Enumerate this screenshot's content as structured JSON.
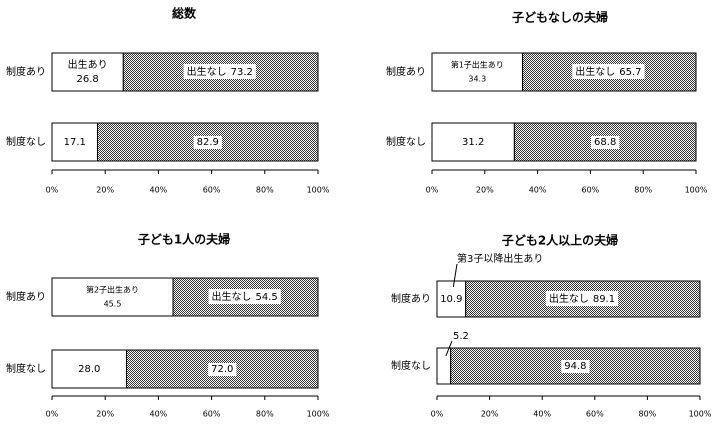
{
  "chart_data": [
    {
      "type": "stacked-bar-h",
      "title": "総数",
      "categories": [
        "制度あり",
        "制度なし"
      ],
      "series": [
        {
          "name": "出生あり",
          "color": "#ffffff",
          "values": [
            26.8,
            17.1
          ]
        },
        {
          "name": "出生なし",
          "color": "#333333",
          "values": [
            73.2,
            82.9
          ]
        }
      ],
      "xlim": [
        0,
        100
      ],
      "xticks": [
        {
          "value": 0,
          "label": "0%"
        },
        {
          "value": 20,
          "label": "20%"
        },
        {
          "value": 40,
          "label": "40%"
        },
        {
          "value": 60,
          "label": "60%"
        },
        {
          "value": 80,
          "label": "80%"
        },
        {
          "value": 100,
          "label": "100%"
        }
      ]
    },
    {
      "type": "stacked-bar-h",
      "title": "子どもなしの夫婦",
      "categories": [
        "制度あり",
        "制度なし"
      ],
      "series": [
        {
          "name": "第1子出生あり",
          "color": "#ffffff",
          "values": [
            34.3,
            31.2
          ]
        },
        {
          "name": "出生なし",
          "color": "#333333",
          "values": [
            65.7,
            68.8
          ]
        }
      ],
      "xlim": [
        0,
        100
      ],
      "xticks": [
        {
          "value": 0,
          "label": "0%"
        },
        {
          "value": 20,
          "label": "20%"
        },
        {
          "value": 40,
          "label": "40%"
        },
        {
          "value": 60,
          "label": "60%"
        },
        {
          "value": 80,
          "label": "80%"
        },
        {
          "value": 100,
          "label": "100%"
        }
      ]
    },
    {
      "type": "stacked-bar-h",
      "title": "子ども1人の夫婦",
      "categories": [
        "制度あり",
        "制度なし"
      ],
      "series": [
        {
          "name": "第2子出生あり",
          "color": "#ffffff",
          "values": [
            45.5,
            28.0
          ],
          "value_labels": [
            "45.5",
            "28.0"
          ]
        },
        {
          "name": "出生なし",
          "color": "#333333",
          "values": [
            54.5,
            72.0
          ],
          "value_labels": [
            "54.5",
            "72.0"
          ]
        }
      ],
      "xlim": [
        0,
        100
      ],
      "xticks": [
        {
          "value": 0,
          "label": "0%"
        },
        {
          "value": 20,
          "label": "20%"
        },
        {
          "value": 40,
          "label": "40%"
        },
        {
          "value": 60,
          "label": "60%"
        },
        {
          "value": 80,
          "label": "80%"
        },
        {
          "value": 100,
          "label": "100%"
        }
      ]
    },
    {
      "type": "stacked-bar-h",
      "title": "子ども2人以上の夫婦",
      "categories": [
        "制度あり",
        "制度なし"
      ],
      "series": [
        {
          "name": "第3子以降出生あり",
          "color": "#ffffff",
          "values": [
            10.9,
            5.2
          ]
        },
        {
          "name": "出生なし",
          "color": "#333333",
          "values": [
            89.1,
            94.8
          ]
        }
      ],
      "xlim": [
        0,
        100
      ],
      "xticks": [
        {
          "value": 0,
          "label": "0%"
        },
        {
          "value": 20,
          "label": "20%"
        },
        {
          "value": 40,
          "label": "40%"
        },
        {
          "value": 60,
          "label": "60%"
        },
        {
          "value": 80,
          "label": "80%"
        },
        {
          "value": 100,
          "label": "100%"
        }
      ]
    }
  ]
}
